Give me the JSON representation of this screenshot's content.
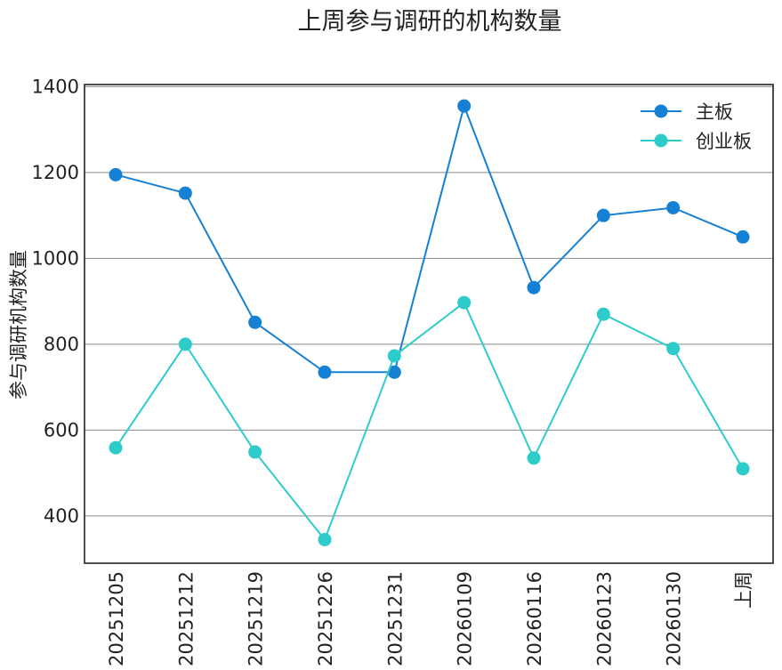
{
  "chart_data": {
    "type": "line",
    "title": "上周参与调研的机构数量",
    "xlabel": "",
    "ylabel": "参与调研机构数量",
    "categories": [
      "20251205",
      "20251212",
      "20251219",
      "20251226",
      "20251231",
      "20260109",
      "20260116",
      "20260123",
      "20260130",
      "上周"
    ],
    "ylim": [
      290,
      1405
    ],
    "yticks": [
      400,
      600,
      800,
      1000,
      1200,
      1400
    ],
    "grid": "horizontal",
    "legend_position": "top-right",
    "series": [
      {
        "name": "主板",
        "color": "#1580d4",
        "values": [
          1195,
          1152,
          851,
          735,
          735,
          1355,
          932,
          1100,
          1118,
          1050
        ]
      },
      {
        "name": "创业板",
        "color": "#2ecbcb",
        "values": [
          559,
          800,
          549,
          345,
          773,
          897,
          535,
          870,
          790,
          510
        ]
      }
    ]
  }
}
